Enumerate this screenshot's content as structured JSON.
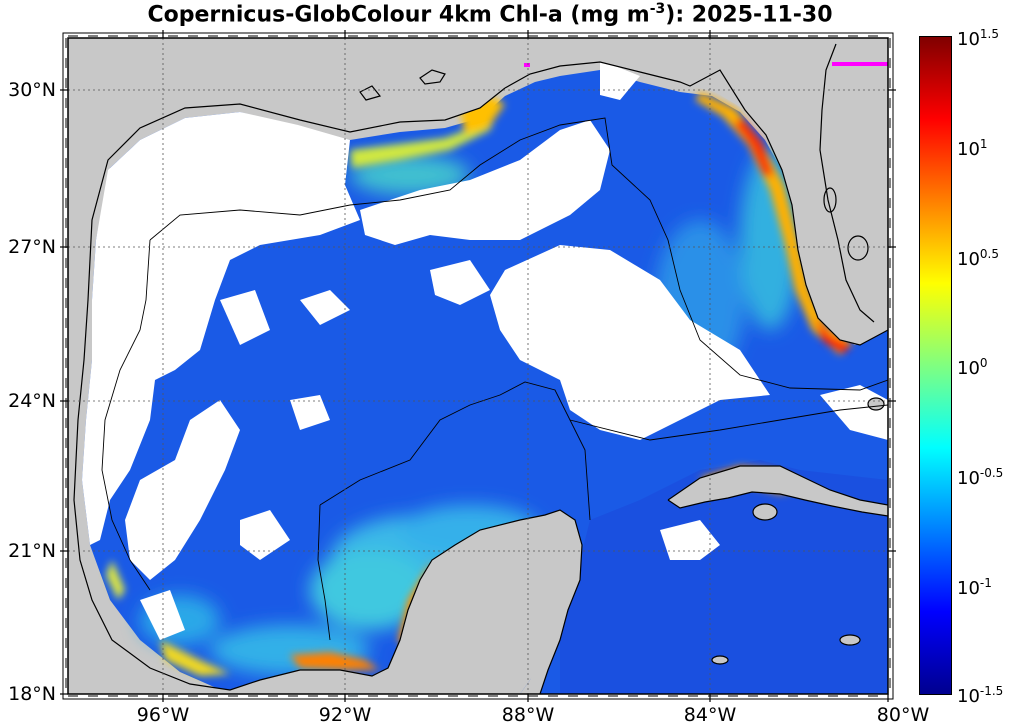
{
  "title": {
    "prefix": "Copernicus-GlobColour 4km Chl-a (mg m",
    "exponent": "-3",
    "suffix": "): 2025-11-30"
  },
  "map": {
    "region": "Gulf of Mexico",
    "lon_range": [
      -98,
      -80
    ],
    "lat_range": [
      18,
      31
    ],
    "land_color": "#c8c8c8",
    "no_data_color": "#ffffff",
    "x_ticks": [
      "96°W",
      "92°W",
      "88°W",
      "84°W",
      "80°W"
    ],
    "y_ticks": [
      "30°N",
      "27°N",
      "24°N",
      "21°N",
      "18°N"
    ]
  },
  "colorbar": {
    "colormap": "jet",
    "scale": "log",
    "range": [
      0.0316,
      31.6
    ],
    "ticks": [
      {
        "base": "10",
        "exp": "1.5"
      },
      {
        "base": "10",
        "exp": "1"
      },
      {
        "base": "10",
        "exp": "0.5"
      },
      {
        "base": "10",
        "exp": "0"
      },
      {
        "base": "10",
        "exp": "-0.5"
      },
      {
        "base": "10",
        "exp": "-1"
      },
      {
        "base": "10",
        "exp": "-1.5"
      }
    ]
  }
}
